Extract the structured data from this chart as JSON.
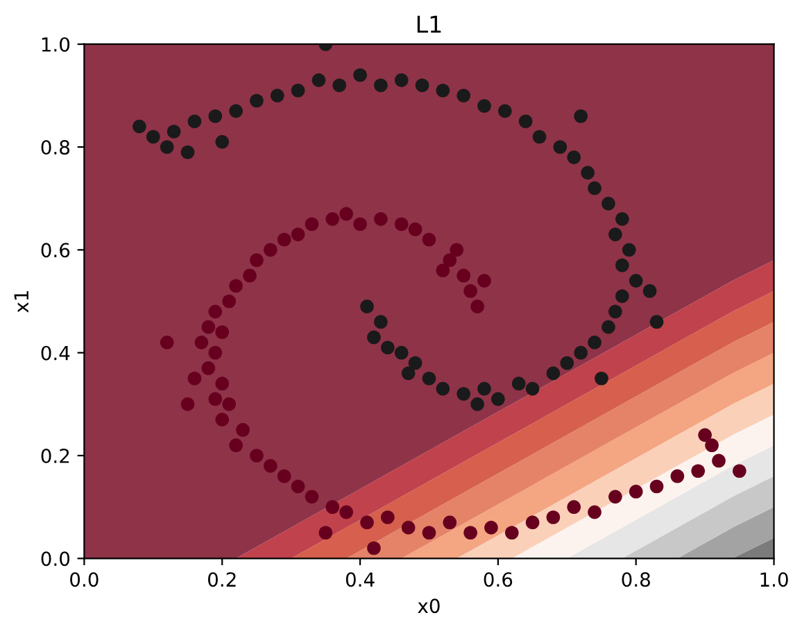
{
  "chart_data": {
    "type": "scatter",
    "title": "L1",
    "xlabel": "x0",
    "ylabel": "x1",
    "xlim": [
      0,
      1
    ],
    "ylim": [
      0,
      1
    ],
    "xticks": [
      {
        "value": 0,
        "label": "0.0"
      },
      {
        "value": 0.2,
        "label": "0.2"
      },
      {
        "value": 0.4,
        "label": "0.4"
      },
      {
        "value": 0.6,
        "label": "0.6"
      },
      {
        "value": 0.8,
        "label": "0.8"
      },
      {
        "value": 1,
        "label": "1.0"
      }
    ],
    "yticks": [
      {
        "value": 0,
        "label": "0.0"
      },
      {
        "value": 0.2,
        "label": "0.2"
      },
      {
        "value": 0.4,
        "label": "0.4"
      },
      {
        "value": 0.6,
        "label": "0.6"
      },
      {
        "value": 0.8,
        "label": "0.8"
      },
      {
        "value": 1,
        "label": "1.0"
      }
    ],
    "legend": false,
    "stacked": true,
    "x": [
      0,
      0.22,
      0.3,
      0.38,
      0.46,
      0.54,
      0.62,
      0.7,
      0.78,
      0.86,
      0.94,
      1
    ],
    "series": [
      {
        "type": "area",
        "color": "#7b7b7b",
        "values": [
          0,
          0,
          0,
          0,
          0,
          0,
          0,
          0,
          0,
          0,
          0,
          0.04
        ]
      },
      {
        "type": "area",
        "color": "#a3a3a3",
        "values": [
          0,
          0,
          0,
          0,
          0,
          0,
          0,
          0,
          0,
          0,
          0.06,
          0.06
        ]
      },
      {
        "type": "area",
        "color": "#c8c8c8",
        "values": [
          0,
          0,
          0,
          0,
          0,
          0,
          0,
          0,
          0,
          0.06,
          0.06,
          0.06
        ]
      },
      {
        "type": "area",
        "color": "#e6e6e6",
        "values": [
          0,
          0,
          0,
          0,
          0,
          0,
          0,
          0,
          0.06,
          0.06,
          0.06,
          0.06
        ]
      },
      {
        "type": "area",
        "color": "#fdf3ee",
        "values": [
          0,
          0,
          0,
          0,
          0,
          0,
          0,
          0.06,
          0.06,
          0.06,
          0.06,
          0.06
        ]
      },
      {
        "type": "area",
        "color": "#fbd0b9",
        "values": [
          0,
          0,
          0,
          0,
          0,
          0,
          0.06,
          0.06,
          0.06,
          0.06,
          0.06,
          0.06
        ]
      },
      {
        "type": "area",
        "color": "#f4a582",
        "values": [
          0,
          0,
          0,
          0,
          0,
          0.06,
          0.06,
          0.06,
          0.06,
          0.06,
          0.06,
          0.06
        ]
      },
      {
        "type": "area",
        "color": "#e58368",
        "values": [
          0,
          0,
          0,
          0,
          0.06,
          0.06,
          0.06,
          0.06,
          0.06,
          0.06,
          0.06,
          0.06
        ]
      },
      {
        "type": "area",
        "color": "#d6604d",
        "values": [
          0,
          0,
          0,
          0.06,
          0.06,
          0.06,
          0.06,
          0.06,
          0.06,
          0.06,
          0.06,
          0.06
        ]
      },
      {
        "type": "area",
        "color": "#c0424c",
        "values": [
          0,
          0,
          0.06,
          0.06,
          0.06,
          0.06,
          0.06,
          0.06,
          0.06,
          0.06,
          0.06,
          0.06
        ]
      },
      {
        "type": "area",
        "color": "#8f3349",
        "values": [
          1,
          1,
          0.94,
          0.88,
          0.82,
          0.76,
          0.7,
          0.64,
          0.58,
          0.52,
          0.46,
          0.42
        ]
      },
      {
        "marker": "circle",
        "color": "#67001f",
        "x": [
          0.57,
          0.56,
          0.55,
          0.58,
          0.53,
          0.52,
          0.54,
          0.5,
          0.48,
          0.46,
          0.43,
          0.4,
          0.38,
          0.36,
          0.33,
          0.31,
          0.29,
          0.27,
          0.25,
          0.24,
          0.22,
          0.21,
          0.19,
          0.18,
          0.2,
          0.17,
          0.19,
          0.18,
          0.16,
          0.2,
          0.19,
          0.21,
          0.2,
          0.23,
          0.22,
          0.25,
          0.27,
          0.29,
          0.31,
          0.33,
          0.36,
          0.38,
          0.41,
          0.44,
          0.47,
          0.5,
          0.53,
          0.56,
          0.59,
          0.62,
          0.65,
          0.68,
          0.71,
          0.74,
          0.77,
          0.8,
          0.83,
          0.86,
          0.89,
          0.92,
          0.9,
          0.91,
          0.95,
          0.12,
          0.15,
          0.42,
          0.35
        ],
        "values": [
          0.49,
          0.52,
          0.55,
          0.54,
          0.58,
          0.56,
          0.6,
          0.62,
          0.64,
          0.65,
          0.66,
          0.65,
          0.67,
          0.66,
          0.65,
          0.63,
          0.62,
          0.6,
          0.58,
          0.55,
          0.53,
          0.5,
          0.48,
          0.45,
          0.44,
          0.42,
          0.4,
          0.37,
          0.35,
          0.34,
          0.31,
          0.3,
          0.27,
          0.25,
          0.22,
          0.2,
          0.18,
          0.16,
          0.14,
          0.12,
          0.1,
          0.09,
          0.07,
          0.08,
          0.06,
          0.05,
          0.07,
          0.05,
          0.06,
          0.05,
          0.07,
          0.08,
          0.1,
          0.09,
          0.12,
          0.13,
          0.14,
          0.16,
          0.17,
          0.19,
          0.24,
          0.22,
          0.17,
          0.42,
          0.3,
          0.02,
          0.05
        ]
      },
      {
        "marker": "circle",
        "color": "#1a1a1a",
        "x": [
          0.41,
          0.43,
          0.42,
          0.44,
          0.46,
          0.48,
          0.47,
          0.5,
          0.52,
          0.55,
          0.58,
          0.6,
          0.63,
          0.65,
          0.68,
          0.7,
          0.72,
          0.74,
          0.76,
          0.77,
          0.78,
          0.8,
          0.78,
          0.79,
          0.77,
          0.78,
          0.76,
          0.74,
          0.73,
          0.71,
          0.69,
          0.66,
          0.64,
          0.61,
          0.58,
          0.55,
          0.52,
          0.49,
          0.46,
          0.43,
          0.4,
          0.37,
          0.34,
          0.31,
          0.28,
          0.25,
          0.22,
          0.19,
          0.16,
          0.13,
          0.1,
          0.08,
          0.12,
          0.15,
          0.35,
          0.83,
          0.82,
          0.75,
          0.57,
          0.72,
          0.2
        ],
        "values": [
          0.49,
          0.46,
          0.43,
          0.41,
          0.4,
          0.38,
          0.36,
          0.35,
          0.33,
          0.32,
          0.33,
          0.31,
          0.34,
          0.33,
          0.36,
          0.38,
          0.4,
          0.42,
          0.45,
          0.48,
          0.51,
          0.54,
          0.57,
          0.6,
          0.63,
          0.66,
          0.69,
          0.72,
          0.75,
          0.78,
          0.8,
          0.82,
          0.85,
          0.87,
          0.88,
          0.9,
          0.91,
          0.92,
          0.93,
          0.92,
          0.94,
          0.92,
          0.93,
          0.91,
          0.9,
          0.89,
          0.87,
          0.86,
          0.85,
          0.83,
          0.82,
          0.84,
          0.8,
          0.79,
          1.0,
          0.46,
          0.52,
          0.35,
          0.3,
          0.86,
          0.81
        ]
      }
    ]
  }
}
